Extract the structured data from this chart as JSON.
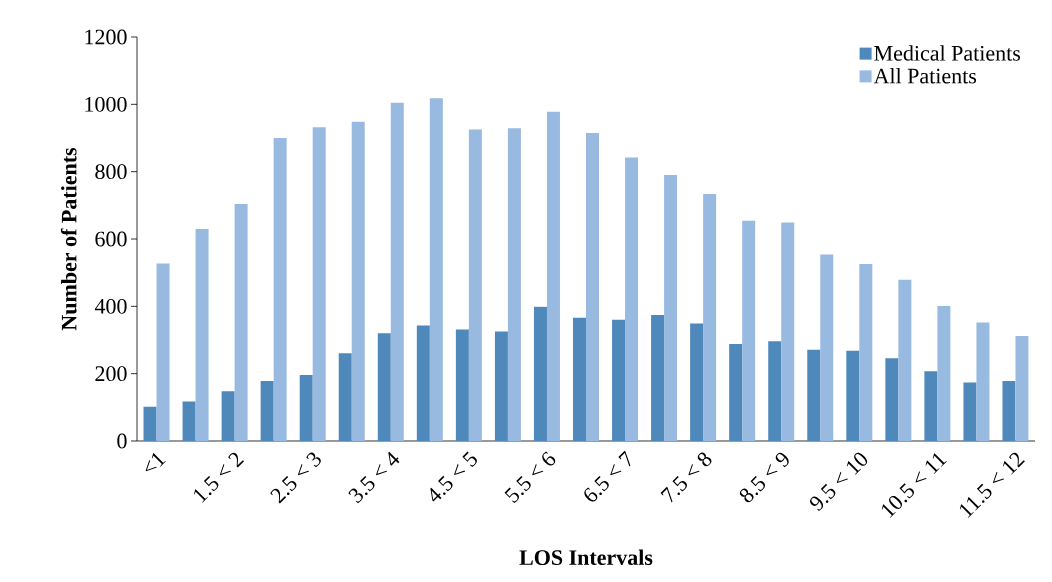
{
  "chart_data": {
    "type": "bar",
    "xlabel": "LOS Intervals",
    "ylabel": "Number of Patients",
    "categories": [
      "<1",
      null,
      "1.5 < 2",
      null,
      "2.5 < 3",
      null,
      "3.5 < 4",
      null,
      "4.5 < 5",
      null,
      "5.5 < 6",
      null,
      "6.5 < 7",
      null,
      "7.5 < 8",
      null,
      "8.5 < 9",
      null,
      "9.5 < 10",
      null,
      "10.5 < 11",
      null,
      "11.5 < 12"
    ],
    "series": [
      {
        "name": "Medical Patients",
        "color": "#4f88bb",
        "values": [
          102,
          117,
          148,
          178,
          196,
          261,
          320,
          343,
          331,
          325,
          399,
          366,
          360,
          374,
          349,
          288,
          296,
          271,
          268,
          246,
          207,
          174,
          178
        ]
      },
      {
        "name": "All Patients",
        "color": "#98b9e0",
        "values": [
          527,
          630,
          704,
          900,
          932,
          948,
          1005,
          1018,
          925,
          929,
          978,
          915,
          842,
          790,
          734,
          654,
          649,
          554,
          526,
          479,
          401,
          352,
          312
        ]
      }
    ],
    "ylim": [
      0,
      1200
    ],
    "yticks": [
      0,
      200,
      400,
      600,
      800,
      1000,
      1200
    ],
    "grid": false,
    "legend": "top right"
  }
}
